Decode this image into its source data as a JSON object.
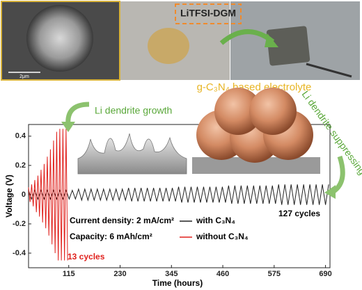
{
  "chart_data": {
    "type": "line",
    "xlabel": "Time (hours)",
    "ylabel": "Voltage (V)",
    "xlim": [
      25,
      700
    ],
    "ylim": [
      -0.5,
      0.48
    ],
    "xticks": [
      115,
      230,
      345,
      460,
      575,
      690
    ],
    "yticks": [
      -0.4,
      -0.2,
      0,
      0.2,
      0.4
    ],
    "series": [
      {
        "name": "with C₃N₄",
        "color": "#222222",
        "x": [
          25,
          32,
          39,
          46,
          53,
          60,
          67,
          74,
          81,
          88,
          95,
          102,
          109,
          116,
          123,
          130,
          137,
          144,
          151,
          158,
          165,
          172,
          179,
          186,
          193,
          200,
          207,
          214,
          221,
          228,
          235,
          242,
          249,
          256,
          263,
          270,
          277,
          284,
          291,
          298,
          305,
          312,
          319,
          326,
          333,
          340,
          347,
          354,
          361,
          368,
          375,
          382,
          389,
          396,
          403,
          410,
          417,
          424,
          431,
          438,
          445,
          452,
          459,
          466,
          473,
          480,
          487,
          494,
          501,
          508,
          515,
          522,
          529,
          536,
          543,
          550,
          557,
          564,
          571,
          578,
          585,
          592,
          599,
          606,
          613,
          620,
          627,
          634,
          641,
          648,
          655,
          662,
          669,
          676,
          683,
          690,
          697
        ],
        "values": [
          0.03,
          -0.03,
          0.03,
          -0.03,
          0.03,
          -0.03,
          0.03,
          -0.03,
          0.03,
          -0.03,
          0.03,
          -0.03,
          0.03,
          -0.03,
          0.03,
          -0.03,
          0.038,
          -0.038,
          0.038,
          -0.038,
          0.038,
          -0.038,
          0.038,
          -0.038,
          0.038,
          -0.038,
          0.038,
          -0.038,
          0.038,
          -0.038,
          0.038,
          -0.038,
          0.046,
          -0.046,
          0.046,
          -0.046,
          0.046,
          -0.046,
          0.046,
          -0.046,
          0.046,
          -0.046,
          0.046,
          -0.046,
          0.046,
          -0.046,
          0.046,
          -0.046,
          0.054,
          -0.054,
          0.054,
          -0.054,
          0.054,
          -0.054,
          0.054,
          -0.054,
          0.054,
          -0.054,
          0.054,
          -0.054,
          0.054,
          -0.054,
          0.054,
          -0.054,
          0.062,
          -0.062,
          0.062,
          -0.062,
          0.062,
          -0.062,
          0.062,
          -0.062,
          0.062,
          -0.062,
          0.062,
          -0.062,
          0.062,
          -0.062,
          0.062,
          -0.062,
          0.07,
          -0.07,
          0.07,
          -0.07,
          0.07,
          -0.07,
          0.07,
          -0.07,
          0.07,
          -0.07,
          0.07,
          -0.07,
          0.07,
          -0.07,
          0.07,
          -0.07,
          0.07
        ]
      },
      {
        "name": "without C₃N₄",
        "color": "#e0201c",
        "x": [
          25,
          28.5,
          32,
          35.5,
          39,
          42.5,
          46,
          49.5,
          53,
          56.5,
          60,
          63.5,
          67,
          70.5,
          74,
          77.5,
          81,
          84.5,
          88,
          91.5,
          95,
          98.5,
          102,
          105.5,
          109,
          112.5
        ],
        "values": [
          0.05,
          -0.05,
          0.07,
          -0.08,
          0.1,
          -0.12,
          0.13,
          -0.15,
          0.17,
          -0.19,
          0.21,
          -0.23,
          0.26,
          -0.28,
          0.31,
          -0.34,
          0.37,
          -0.4,
          0.43,
          -0.45,
          0.45,
          -0.45,
          0.45,
          -0.45,
          0.45,
          -0.45
        ]
      }
    ],
    "annotations": [
      "Current density: 2 mA/cm²",
      "Capacity: 6 mAh/cm²",
      "13 cycles",
      "127 cycles",
      "Li dendrite growth",
      "Li dendrite suppressing",
      "LiTFSI-DGM",
      "g-C₃N₄ based electrolyte",
      "2μm"
    ]
  }
}
